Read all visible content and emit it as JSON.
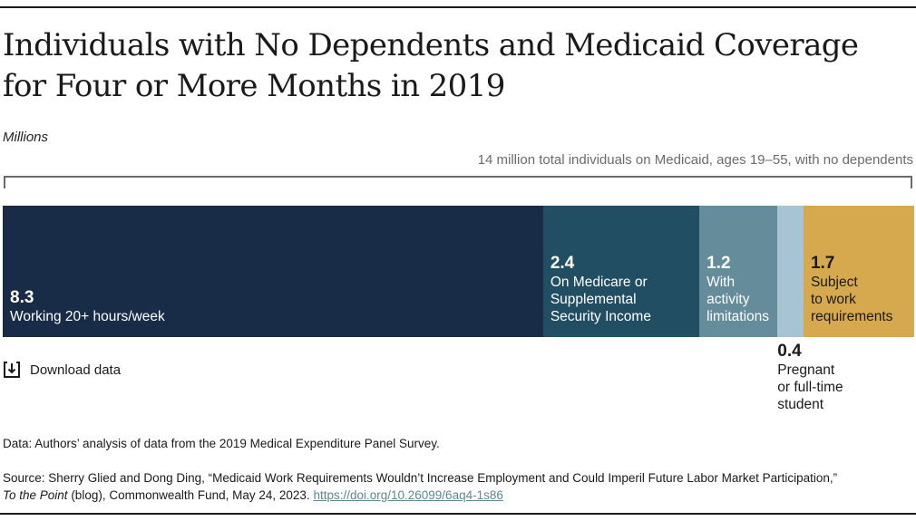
{
  "title": "Individuals with No Dependents and Medicaid Coverage for Four or More Months in 2019",
  "unit_label": "Millions",
  "total_label": "14 million total individuals on Medicaid, ages 19–55, with no dependents",
  "download_label": "Download data",
  "data_note": "Data: Authors’ analysis of data from the 2019 Medical Expenditure Panel Survey.",
  "source": {
    "prefix": "Source: Sherry Glied and Dong Ding, “Medicaid Work Requirements Wouldn’t Increase Employment and Could Imperil Future Labor Market Participation,”",
    "publication": "To the Point",
    "suffix": " (blog), Commonwealth Fund, May 24, 2023. ",
    "link_text": "https://doi.org/10.26099/6aq4-1s86"
  },
  "chart_data": {
    "type": "bar",
    "orientation": "horizontal-stacked",
    "title": "Individuals with No Dependents and Medicaid Coverage for Four or More Months in 2019",
    "unit": "Millions",
    "total": 14,
    "categories": [
      "Working 20+ hours/week",
      "On Medicare or Supplemental Security Income",
      "With activity limitations",
      "Pregnant or full-time student",
      "Subject to work requirements"
    ],
    "values": [
      8.3,
      2.4,
      1.2,
      0.4,
      1.7
    ],
    "display_values": [
      "8.3",
      "2.4",
      "1.2",
      "0.4",
      "1.7"
    ],
    "label_lines": [
      "Working 20+ hours/week",
      "On Medicare or\nSupplemental\nSecurity Income",
      "With\nactivity\nlimitations",
      "Pregnant\nor full-time\nstudent",
      "Subject\nto work\nrequirements"
    ],
    "colors": [
      "#182b47",
      "#214e62",
      "#648c9a",
      "#a7c4d4",
      "#d6a94e"
    ],
    "label_outside": [
      false,
      false,
      false,
      true,
      false
    ],
    "label_dark": [
      false,
      false,
      false,
      true,
      true
    ]
  }
}
